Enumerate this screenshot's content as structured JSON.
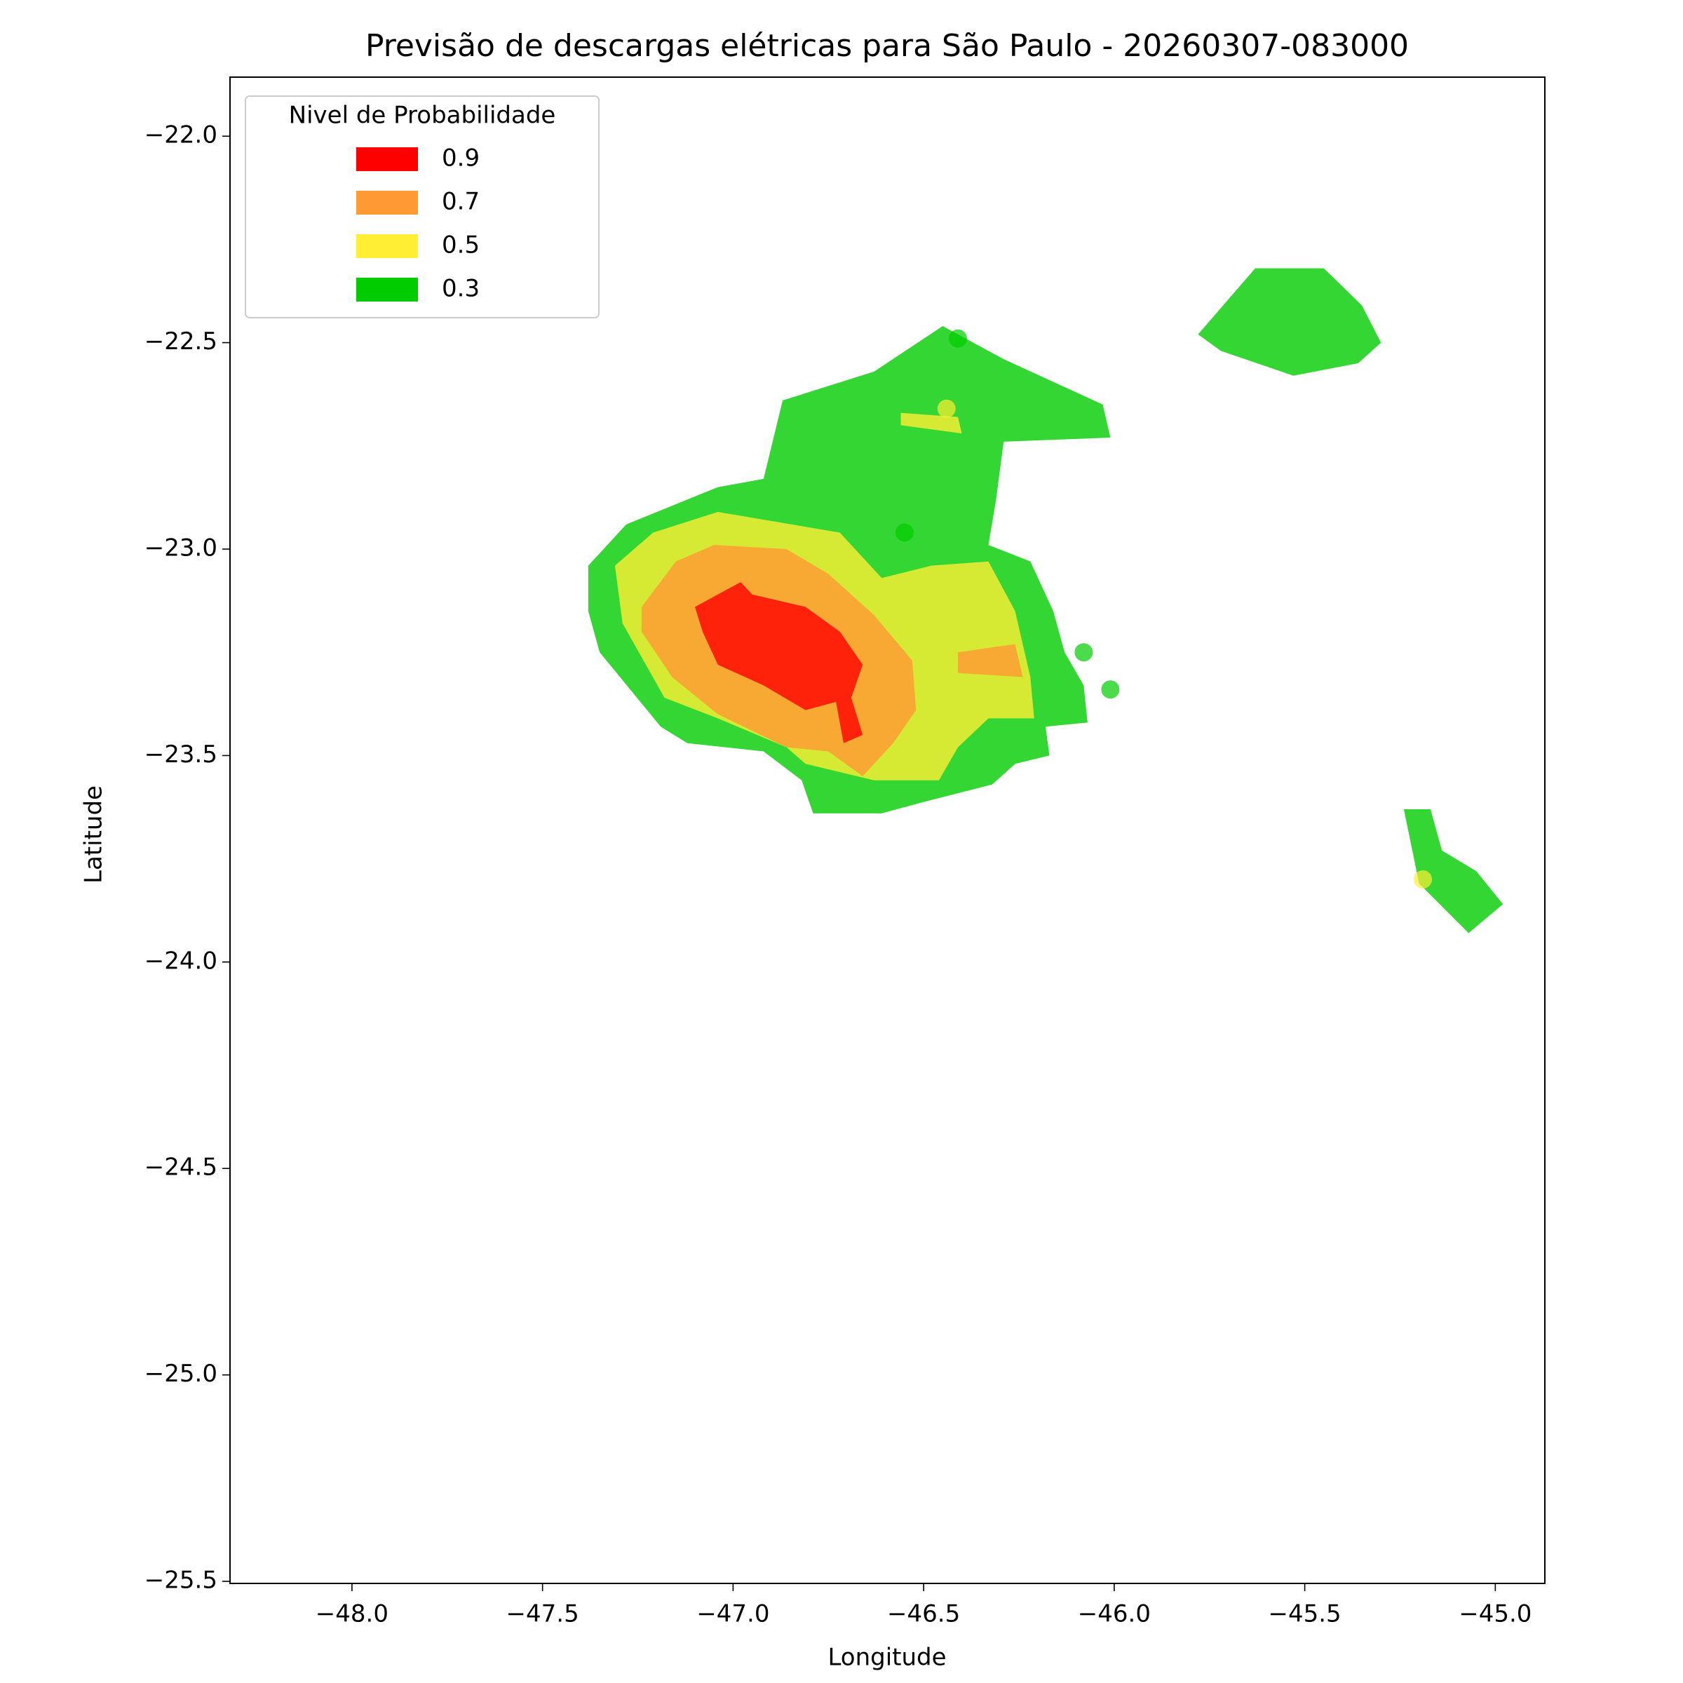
{
  "chart_data": {
    "type": "contour",
    "title": "Previsão de descargas elétricas para São Paulo - 20260307-083000",
    "xlabel": "Longitude",
    "ylabel": "Latitude",
    "legend_title": "Nivel de Probabilidade",
    "xlim": [
      -48.32,
      -44.87
    ],
    "ylim": [
      -25.505,
      -21.857
    ],
    "xticks": [
      {
        "value": -48,
        "label": "−48.0"
      },
      {
        "value": -47.5,
        "label": "−47.5"
      },
      {
        "value": -47,
        "label": "−47.0"
      },
      {
        "value": -46.5,
        "label": "−46.5"
      },
      {
        "value": -46,
        "label": "−46.0"
      },
      {
        "value": -45.5,
        "label": "−45.5"
      },
      {
        "value": -45,
        "label": "−45.0"
      }
    ],
    "yticks": [
      {
        "value": -22,
        "label": "−22.0"
      },
      {
        "value": -22.5,
        "label": "−22.5"
      },
      {
        "value": -23,
        "label": "−23.0"
      },
      {
        "value": -23.5,
        "label": "−23.5"
      },
      {
        "value": -24,
        "label": "−24.0"
      },
      {
        "value": -24.5,
        "label": "−24.5"
      },
      {
        "value": -25,
        "label": "−25.0"
      },
      {
        "value": -25.5,
        "label": "−25.5"
      }
    ],
    "series": [
      {
        "name": "0.9",
        "color": "#ff0000",
        "regions": [
          {
            "lon": [
              -47.1,
              -46.98,
              -46.95,
              -46.81,
              -46.72,
              -46.66,
              -46.69,
              -46.66,
              -46.71,
              -46.73,
              -46.81,
              -46.92,
              -47.04,
              -47.08
            ],
            "lat": [
              -23.14,
              -23.08,
              -23.11,
              -23.14,
              -23.2,
              -23.28,
              -23.36,
              -23.45,
              -23.47,
              -23.37,
              -23.39,
              -23.33,
              -23.28,
              -23.2
            ]
          }
        ],
        "points": []
      },
      {
        "name": "0.7",
        "color": "#ff9933",
        "regions": [
          {
            "lon": [
              -47.24,
              -47.15,
              -47.05,
              -46.86,
              -46.75,
              -46.63,
              -46.53,
              -46.52,
              -46.58,
              -46.66,
              -46.75,
              -46.86,
              -47.04,
              -47.16,
              -47.24
            ],
            "lat": [
              -23.14,
              -23.03,
              -22.99,
              -23.0,
              -23.06,
              -23.16,
              -23.27,
              -23.39,
              -23.47,
              -23.55,
              -23.49,
              -23.48,
              -23.4,
              -23.31,
              -23.2
            ]
          },
          {
            "lon": [
              -46.41,
              -46.26,
              -46.24,
              -46.41
            ],
            "lat": [
              -23.25,
              -23.23,
              -23.31,
              -23.3
            ]
          }
        ],
        "points": []
      },
      {
        "name": "0.5",
        "color": "#ffee33",
        "regions": [
          {
            "lon": [
              -47.31,
              -47.21,
              -47.04,
              -46.72,
              -46.61,
              -46.48,
              -46.33,
              -46.26,
              -46.22,
              -46.21,
              -46.33,
              -46.41,
              -46.46,
              -46.63,
              -46.81,
              -46.86,
              -47.04,
              -47.18,
              -47.29
            ],
            "lat": [
              -23.04,
              -22.96,
              -22.91,
              -22.96,
              -23.07,
              -23.04,
              -23.03,
              -23.15,
              -23.31,
              -23.41,
              -23.41,
              -23.48,
              -23.56,
              -23.56,
              -23.52,
              -23.48,
              -23.41,
              -23.36,
              -23.18
            ]
          },
          {
            "lon": [
              -46.56,
              -46.41,
              -46.4,
              -46.56
            ],
            "lat": [
              -22.67,
              -22.68,
              -22.72,
              -22.7
            ]
          }
        ],
        "points": [
          {
            "lon": -46.44,
            "lat": -22.66
          },
          {
            "lon": -45.19,
            "lat": -23.8
          }
        ]
      },
      {
        "name": "0.3",
        "color": "#00cc00",
        "regions": [
          {
            "lon": [
              -47.38,
              -47.28,
              -47.04,
              -46.92,
              -46.87,
              -46.63,
              -46.45,
              -46.29,
              -46.03,
              -46.01,
              -46.29,
              -46.31,
              -46.33,
              -46.22,
              -46.16,
              -46.13,
              -46.08,
              -46.07,
              -46.18,
              -46.17,
              -46.26,
              -46.32,
              -46.49,
              -46.61,
              -46.79,
              -46.82,
              -46.92,
              -47.12,
              -47.19,
              -47.35,
              -47.38
            ],
            "lat": [
              -23.04,
              -22.94,
              -22.85,
              -22.83,
              -22.64,
              -22.57,
              -22.46,
              -22.54,
              -22.65,
              -22.73,
              -22.74,
              -22.88,
              -22.99,
              -23.03,
              -23.15,
              -23.25,
              -23.33,
              -23.42,
              -23.43,
              -23.5,
              -23.52,
              -23.57,
              -23.61,
              -23.64,
              -23.64,
              -23.56,
              -23.49,
              -23.47,
              -23.43,
              -23.25,
              -23.15
            ]
          },
          {
            "lon": [
              -45.78,
              -45.63,
              -45.45,
              -45.35,
              -45.3,
              -45.36,
              -45.53,
              -45.72
            ],
            "lat": [
              -22.48,
              -22.32,
              -22.32,
              -22.41,
              -22.5,
              -22.55,
              -22.58,
              -22.52
            ]
          },
          {
            "lon": [
              -45.24,
              -45.17,
              -45.14,
              -45.05,
              -44.98,
              -45.07,
              -45.2
            ],
            "lat": [
              -23.63,
              -23.63,
              -23.73,
              -23.78,
              -23.86,
              -23.93,
              -23.81
            ]
          }
        ],
        "points": [
          {
            "lon": -46.08,
            "lat": -23.25
          },
          {
            "lon": -46.01,
            "lat": -23.34
          },
          {
            "lon": -46.41,
            "lat": -22.49
          },
          {
            "lon": -46.55,
            "lat": -22.96
          }
        ]
      }
    ]
  }
}
